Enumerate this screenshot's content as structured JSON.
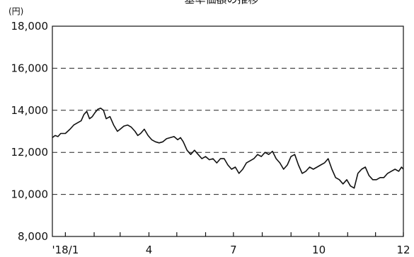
{
  "chart_data": {
    "type": "line",
    "title": "基準価額の推移",
    "unit": "(円)",
    "ylim": [
      8000,
      18000
    ],
    "yticks": [
      {
        "value": 8000,
        "label": "8,000"
      },
      {
        "value": 10000,
        "label": "10,000"
      },
      {
        "value": 12000,
        "label": "12,000"
      },
      {
        "value": 14000,
        "label": "14,000"
      },
      {
        "value": 16000,
        "label": "16,000"
      },
      {
        "value": 18000,
        "label": "18,000"
      }
    ],
    "xlim": [
      "2017-12-18",
      "2018-12-31"
    ],
    "xticks": [
      "2018-01-01",
      "2018-02-01",
      "2018-03-01",
      "2018-04-01",
      "2018-05-01",
      "2018-06-01",
      "2018-07-01",
      "2018-08-01",
      "2018-09-01",
      "2018-10-01",
      "2018-11-01",
      "2018-12-01",
      "2018-12-31"
    ],
    "xtick_labels": [
      {
        "date": "2018-01-01",
        "label": "'18/1"
      },
      {
        "date": "2018-04-01",
        "label": "4"
      },
      {
        "date": "2018-07-01",
        "label": "7"
      },
      {
        "date": "2018-10-01",
        "label": "10"
      },
      {
        "date": "2018-12-31",
        "label": "12"
      }
    ],
    "grid": "horizontal-dashed",
    "line_color": "#111111",
    "series": [
      {
        "x": [
          "2017-12-18",
          "2017-12-21",
          "2017-12-24",
          "2017-12-27",
          "2018-01-01",
          "2018-01-06",
          "2018-01-10",
          "2018-01-14",
          "2018-01-18",
          "2018-01-21",
          "2018-01-24",
          "2018-01-27",
          "2018-01-30",
          "2018-02-02",
          "2018-02-05",
          "2018-02-08",
          "2018-02-11",
          "2018-02-14",
          "2018-02-18",
          "2018-02-22",
          "2018-02-26",
          "2018-03-01",
          "2018-03-05",
          "2018-03-09",
          "2018-03-13",
          "2018-03-17",
          "2018-03-20",
          "2018-03-23",
          "2018-03-27",
          "2018-03-31",
          "2018-04-04",
          "2018-04-08",
          "2018-04-12",
          "2018-04-16",
          "2018-04-20",
          "2018-04-24",
          "2018-04-28",
          "2018-05-02",
          "2018-05-05",
          "2018-05-08",
          "2018-05-12",
          "2018-05-16",
          "2018-05-20",
          "2018-05-24",
          "2018-05-28",
          "2018-06-01",
          "2018-06-05",
          "2018-06-09",
          "2018-06-13",
          "2018-06-17",
          "2018-06-21",
          "2018-06-25",
          "2018-06-29",
          "2018-07-03",
          "2018-07-07",
          "2018-07-11",
          "2018-07-15",
          "2018-07-19",
          "2018-07-23",
          "2018-07-27",
          "2018-07-31",
          "2018-08-04",
          "2018-08-08",
          "2018-08-12",
          "2018-08-16",
          "2018-08-20",
          "2018-08-24",
          "2018-08-28",
          "2018-09-01",
          "2018-09-05",
          "2018-09-09",
          "2018-09-13",
          "2018-09-17",
          "2018-09-21",
          "2018-09-25",
          "2018-09-29",
          "2018-10-03",
          "2018-10-07",
          "2018-10-11",
          "2018-10-15",
          "2018-10-19",
          "2018-10-23",
          "2018-10-27",
          "2018-10-31",
          "2018-11-04",
          "2018-11-08",
          "2018-11-12",
          "2018-11-16",
          "2018-11-20",
          "2018-11-24",
          "2018-11-28",
          "2018-12-02",
          "2018-12-06",
          "2018-12-10",
          "2018-12-14",
          "2018-12-18",
          "2018-12-22",
          "2018-12-26",
          "2018-12-29",
          "2018-12-31"
        ],
        "y": [
          12700,
          12800,
          12750,
          12900,
          12900,
          13100,
          13300,
          13400,
          13500,
          13800,
          13950,
          13600,
          13700,
          13900,
          14050,
          14100,
          14000,
          13600,
          13700,
          13300,
          13000,
          13100,
          13250,
          13300,
          13200,
          13000,
          12800,
          12900,
          13100,
          12800,
          12600,
          12500,
          12450,
          12500,
          12650,
          12700,
          12750,
          12600,
          12700,
          12500,
          12100,
          11900,
          12100,
          11900,
          11700,
          11800,
          11650,
          11700,
          11500,
          11700,
          11700,
          11400,
          11200,
          11300,
          11000,
          11200,
          11500,
          11600,
          11700,
          11900,
          11800,
          12000,
          11900,
          12050,
          11700,
          11500,
          11200,
          11400,
          11800,
          11900,
          11400,
          11000,
          11100,
          11300,
          11200,
          11300,
          11400,
          11500,
          11700,
          11200,
          10800,
          10700,
          10500,
          10700,
          10400,
          10300,
          11000,
          11200,
          11300,
          10900,
          10700,
          10700,
          10800,
          10800,
          11000,
          11100,
          11200,
          11100,
          11300,
          11200
        ]
      }
    ]
  }
}
